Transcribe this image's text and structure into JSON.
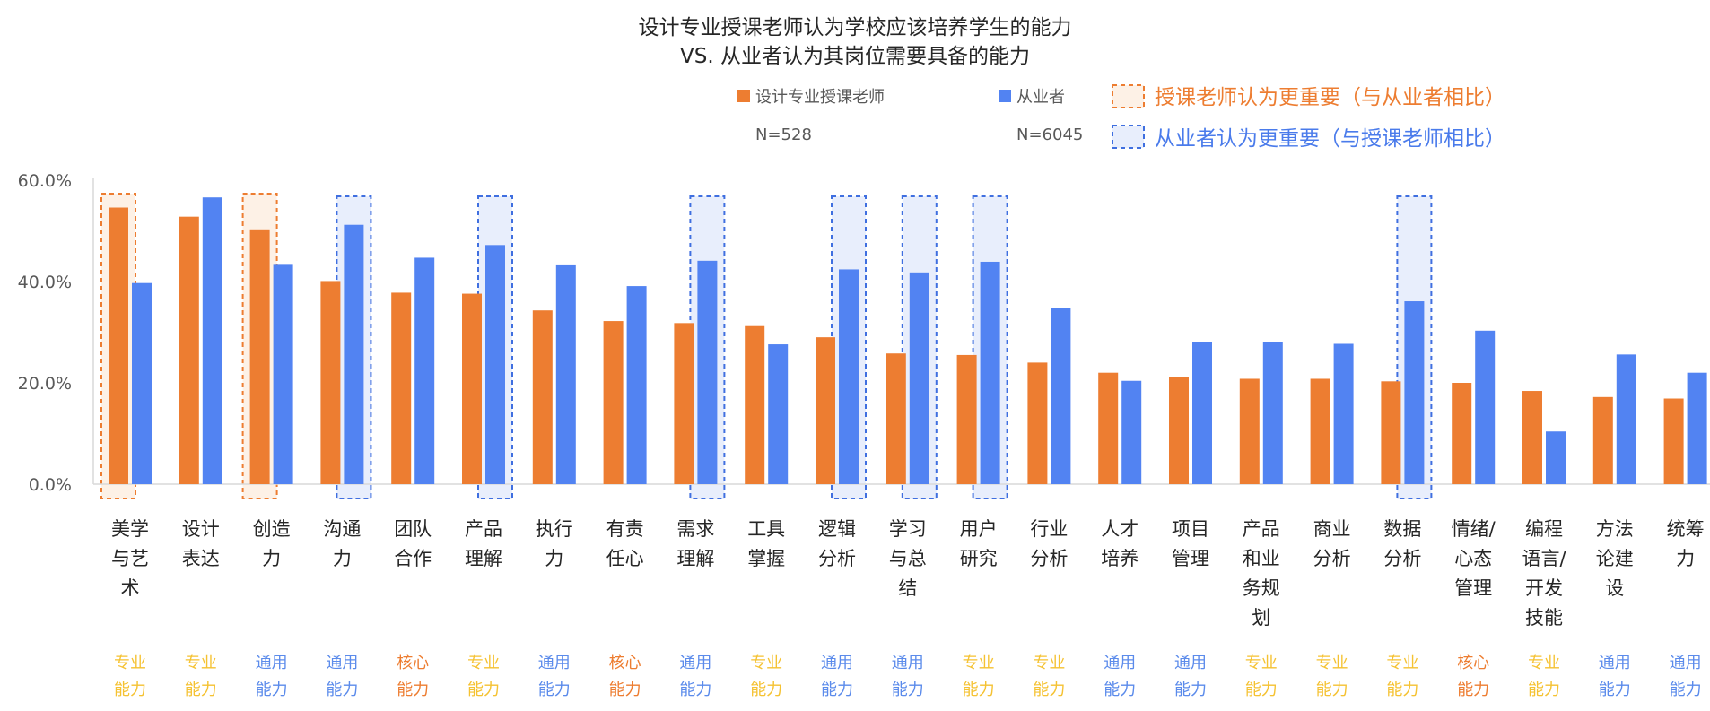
{
  "chart_data": {
    "type": "bar",
    "title": [
      "设计专业授课老师认为学校应该培养学生的能力",
      "VS. 从业者认为其岗位需要具备的能力"
    ],
    "xlabel": "",
    "ylabel": "",
    "ylim": [
      0,
      60
    ],
    "yticks": [
      "0.0%",
      "20.0%",
      "40.0%",
      "60.0%"
    ],
    "ytick_values": [
      0,
      20,
      40,
      60
    ],
    "grid": false,
    "categories": [
      [
        "美学",
        "与艺",
        "术"
      ],
      [
        "设计",
        "表达"
      ],
      [
        "创造",
        "力"
      ],
      [
        "沟通",
        "力"
      ],
      [
        "团队",
        "合作"
      ],
      [
        "产品",
        "理解"
      ],
      [
        "执行",
        "力"
      ],
      [
        "有责",
        "任心"
      ],
      [
        "需求",
        "理解"
      ],
      [
        "工具",
        "掌握"
      ],
      [
        "逻辑",
        "分析"
      ],
      [
        "学习",
        "与总",
        "结"
      ],
      [
        "用户",
        "研究"
      ],
      [
        "行业",
        "分析"
      ],
      [
        "人才",
        "培养"
      ],
      [
        "项目",
        "管理"
      ],
      [
        "产品",
        "和业",
        "务规",
        "划"
      ],
      [
        "商业",
        "分析"
      ],
      [
        "数据",
        "分析"
      ],
      [
        "情绪/",
        "心态",
        "管理"
      ],
      [
        "编程",
        "语言/",
        "开发",
        "技能"
      ],
      [
        "方法",
        "论建",
        "设"
      ],
      [
        "统筹",
        "力"
      ]
    ],
    "series": [
      {
        "name": "设计专业授课老师",
        "n": "N=528",
        "color": "#ED7D31",
        "values": [
          54.6,
          52.8,
          50.3,
          40.1,
          37.8,
          37.6,
          34.3,
          32.2,
          31.8,
          31.2,
          29.0,
          25.8,
          25.5,
          24.0,
          22.0,
          21.2,
          20.8,
          20.8,
          20.3,
          20.0,
          18.4,
          17.2,
          16.9
        ]
      },
      {
        "name": "从业者",
        "n": "N=6045",
        "color": "#5283F2",
        "values": [
          39.7,
          56.6,
          43.3,
          51.2,
          44.7,
          47.2,
          43.2,
          39.1,
          44.1,
          27.6,
          42.4,
          41.8,
          43.9,
          34.8,
          20.4,
          28.0,
          28.1,
          27.7,
          36.1,
          30.3,
          10.4,
          25.6,
          22.0
        ]
      }
    ],
    "highlights": {
      "teacher_more_important": [
        0,
        2
      ],
      "practitioner_more_important": [
        3,
        5,
        8,
        10,
        11,
        12,
        18
      ]
    },
    "highlight_legend": {
      "teacher": "授课老师认为更重要（与从业者相比）",
      "practitioner": "从业者认为更重要（与授课老师相比）"
    },
    "ability_types": [
      [
        "专业",
        "能力"
      ],
      [
        "专业",
        "能力"
      ],
      [
        "通用",
        "能力"
      ],
      [
        "通用",
        "能力"
      ],
      [
        "核心",
        "能力"
      ],
      [
        "专业",
        "能力"
      ],
      [
        "通用",
        "能力"
      ],
      [
        "核心",
        "能力"
      ],
      [
        "通用",
        "能力"
      ],
      [
        "专业",
        "能力"
      ],
      [
        "通用",
        "能力"
      ],
      [
        "通用",
        "能力"
      ],
      [
        "专业",
        "能力"
      ],
      [
        "专业",
        "能力"
      ],
      [
        "通用",
        "能力"
      ],
      [
        "通用",
        "能力"
      ],
      [
        "专业",
        "能力"
      ],
      [
        "专业",
        "能力"
      ],
      [
        "专业",
        "能力"
      ],
      [
        "核心",
        "能力"
      ],
      [
        "专业",
        "能力"
      ],
      [
        "通用",
        "能力"
      ],
      [
        "通用",
        "能力"
      ]
    ],
    "ability_colors": {
      "专业": "#F5C232",
      "通用": "#5B8BEB",
      "核心": "#ED7D31"
    },
    "colors": {
      "teacher_box_stroke": "#ED7D31",
      "teacher_box_fill": "#FDF1E6",
      "practitioner_box_stroke": "#3F6FE0",
      "practitioner_box_fill": "#E8EEFC",
      "axis": "#D9D9D9",
      "tick_label": "#595959",
      "title": "#262626",
      "category_label": "#262626",
      "legend_label": "#595959",
      "legend_teacher_text": "#ED7D31",
      "legend_practitioner_text": "#4A7BEB"
    }
  }
}
